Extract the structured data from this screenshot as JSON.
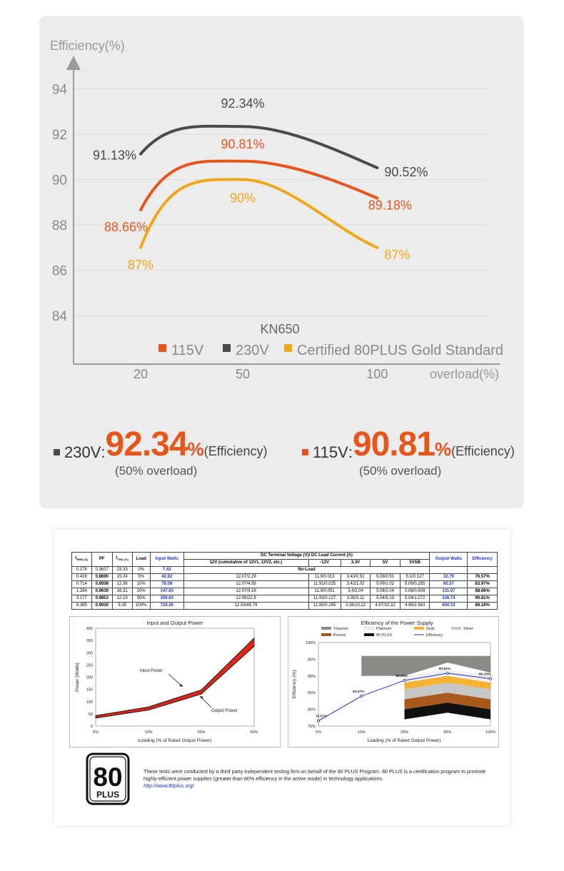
{
  "chart_data": [
    {
      "type": "line",
      "title": "KN650",
      "xlabel": "overload(%)",
      "ylabel": "Efficiency(%)",
      "x": [
        20,
        50,
        100
      ],
      "x_ticks": [
        "20",
        "50",
        "100"
      ],
      "y_ticks": [
        "84",
        "86",
        "88",
        "90",
        "92",
        "94"
      ],
      "ylim": [
        83,
        95.5
      ],
      "series": [
        {
          "name": "230V",
          "color": "#4a4a4a",
          "values": [
            91.13,
            92.34,
            90.52
          ],
          "labels": [
            "91.13%",
            "92.34%",
            "90.52%"
          ]
        },
        {
          "name": "115V",
          "color": "#e8551b",
          "values": [
            88.66,
            90.81,
            89.18
          ],
          "labels": [
            "88.66%",
            "90.81%",
            "89.18%"
          ]
        },
        {
          "name": "Certified 80PLUS Gold Standard",
          "color": "#f0a818",
          "values": [
            87,
            90,
            87
          ],
          "labels": [
            "87%",
            "90%",
            "87%"
          ]
        }
      ],
      "legend_position": "bottom-right",
      "grid": true
    },
    {
      "type": "line",
      "title": "Input and Output Power",
      "xlabel": "Loading (% of Rated Output Power)",
      "ylabel": "Power (Watts)",
      "x_ticks": [
        "5%",
        "10%",
        "20%",
        "50%"
      ],
      "y_ticks": [
        "0",
        "50",
        "100",
        "150",
        "200",
        "250",
        "300",
        "350",
        "400"
      ],
      "ylim": [
        0,
        400
      ],
      "series": [
        {
          "name": "Input Power",
          "values": [
            42.82,
            78.08,
            147.83,
            359.83
          ]
        },
        {
          "name": "Output Power",
          "values": [
            32.79,
            65.57,
            131.07,
            326.74
          ]
        }
      ],
      "annotations": [
        "Input Power",
        "Output Power"
      ]
    },
    {
      "type": "line",
      "title": "Efficiency of the Power Supply",
      "xlabel": "Loading (% of Rated Output Power)",
      "ylabel": "Efficiency (%)",
      "x_ticks": [
        "5%",
        "10%",
        "20%",
        "50%",
        "100%"
      ],
      "y_ticks": [
        "75%",
        "80%",
        "85%",
        "90%",
        "95%",
        "100%"
      ],
      "ylim": [
        75,
        100
      ],
      "legend": [
        "Titanium",
        "Platinum",
        "Gold",
        "Silver",
        "Bronze",
        "80 PLUS",
        "Efficiency"
      ],
      "series": [
        {
          "name": "Efficiency",
          "values": [
            76.57,
            83.97,
            88.66,
            90.81,
            89.18
          ],
          "labels": [
            "76.57%",
            "83.97%",
            "88.66%",
            "90.81%",
            "89.18%"
          ]
        }
      ],
      "legend_position": "top"
    }
  ],
  "stats": [
    {
      "voltage": "230V",
      "value": "92.34",
      "unit": "%",
      "note": "(Efficiency)",
      "sub": "(50% overload)",
      "marker_color": "#4a4a4a"
    },
    {
      "voltage": "115V",
      "value": "90.81",
      "unit": "%",
      "note": "(Efficiency)",
      "sub": "(50% overload)",
      "marker_color": "#e8551b"
    }
  ],
  "report": {
    "headers": {
      "irms": "I",
      "irms_sub": "RMS (A)",
      "pf": "PF",
      "ithd": "I",
      "ithd_sub": "THD (%)",
      "load": "Load",
      "input": "Input Watts",
      "dc": "DC Terminal Voltage (V)/ DC Load Current (A)",
      "dc_12v": "12V (cumulative of 12V1, 12V2, etc.)",
      "dc_m12v": "-12V",
      "dc_33v": "3.3V",
      "dc_5v": "5V",
      "dc_5vsb": "5VSB",
      "output": "Output Watts",
      "efficiency": "Efficiency"
    },
    "noload_row": {
      "irms": "0.178",
      "pf": "0.3637",
      "ithd": "23.33",
      "load": "0%",
      "input": "7.43",
      "text": "No-Load"
    },
    "rows": [
      {
        "irms": "0.428",
        "pf": "0.8690",
        "ithd": "15.24",
        "load": "5%",
        "input": "42.82",
        "v12": "12.07/2.29",
        "vm12": "11.9/0.013",
        "v33": "3.43/0.51",
        "v5": "5.09/0.51",
        "vsb": "5.1/0.127",
        "output": "32.79",
        "eff": "76.57%"
      },
      {
        "irms": "0.714",
        "pf": "0.9508",
        "ithd": "12.36",
        "load": "10%",
        "input": "78.08",
        "v12": "12.07/4.58",
        "vm12": "11.91/0.025",
        "v33": "3.42/1.02",
        "v5": "5.09/1.02",
        "vsb": "5.09/0.255",
        "output": "65.57",
        "eff": "83.97%"
      },
      {
        "irms": "1.334",
        "pf": "0.9639",
        "ithd": "16.31",
        "load": "20%",
        "input": "147.83",
        "v12": "12.07/9.16",
        "vm12": "11.9/0.051",
        "v33": "3.4/2.04",
        "v5": "5.08/2.04",
        "vsb": "5.08/0.509",
        "output": "131.07",
        "eff": "88.66%"
      },
      {
        "irms": "3.177",
        "pf": "0.9853",
        "ithd": "12.19",
        "load": "50%",
        "input": "359.83",
        "v12": "12.06/22.9",
        "vm12": "11.93/0.127",
        "v33": "3.35/5.11",
        "v5": "5.04/5.13",
        "vsb": "5.04/1.272",
        "output": "326.74",
        "eff": "90.81%"
      },
      {
        "irms": "6.385",
        "pf": "0.9930",
        "ithd": "9.35",
        "load": "100%",
        "input": "729.26",
        "v12": "12.03/45.79",
        "vm12": "11.95/0.255",
        "v33": "3.26/10.22",
        "v5": "4.97/10.22",
        "vsb": "4.96/2.543",
        "output": "650.33",
        "eff": "89.18%"
      }
    ]
  },
  "logo": {
    "number": "80",
    "word": "PLUS"
  },
  "note": {
    "text": "These tests were conducted by a third party independent testing firm on behalf of the 80 PLUS Program. 80 PLUS is a certification program to promote highly-efficient power supplies (greater than 80% efficiency in the active mode) in technology applications.",
    "link": "http://www.80plus.org/"
  }
}
